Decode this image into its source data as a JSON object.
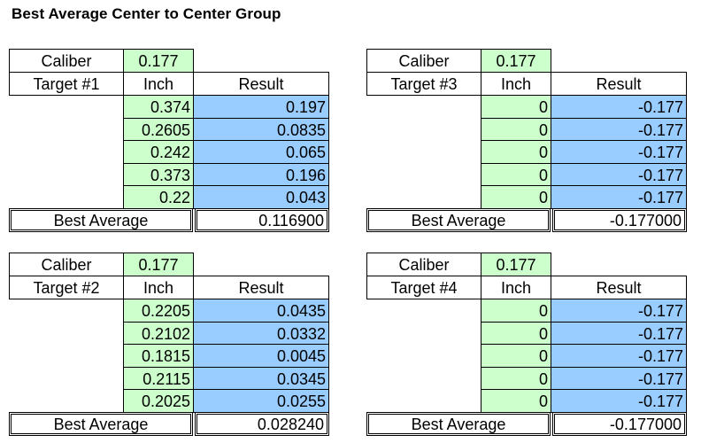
{
  "title": "Best Average Center to Center Group",
  "labels": {
    "caliber": "Caliber",
    "inch": "Inch",
    "result": "Result",
    "best_average": "Best Average"
  },
  "colors": {
    "input_fill": "#ccffcc",
    "result_fill": "#99ccff",
    "border": "#000000"
  },
  "targets": [
    {
      "name": "Target #1",
      "caliber": "0.177",
      "rows": [
        {
          "inch": "0.374",
          "result": "0.197"
        },
        {
          "inch": "0.2605",
          "result": "0.0835"
        },
        {
          "inch": "0.242",
          "result": "0.065"
        },
        {
          "inch": "0.373",
          "result": "0.196"
        },
        {
          "inch": "0.22",
          "result": "0.043"
        }
      ],
      "best_average": "0.116900"
    },
    {
      "name": "Target #3",
      "caliber": "0.177",
      "rows": [
        {
          "inch": "0",
          "result": "-0.177"
        },
        {
          "inch": "0",
          "result": "-0.177"
        },
        {
          "inch": "0",
          "result": "-0.177"
        },
        {
          "inch": "0",
          "result": "-0.177"
        },
        {
          "inch": "0",
          "result": "-0.177"
        }
      ],
      "best_average": "-0.177000"
    },
    {
      "name": "Target #2",
      "caliber": "0.177",
      "rows": [
        {
          "inch": "0.2205",
          "result": "0.0435"
        },
        {
          "inch": "0.2102",
          "result": "0.0332"
        },
        {
          "inch": "0.1815",
          "result": "0.0045"
        },
        {
          "inch": "0.2115",
          "result": "0.0345"
        },
        {
          "inch": "0.2025",
          "result": "0.0255"
        }
      ],
      "best_average": "0.028240"
    },
    {
      "name": "Target #4",
      "caliber": "0.177",
      "rows": [
        {
          "inch": "0",
          "result": "-0.177"
        },
        {
          "inch": "0",
          "result": "-0.177"
        },
        {
          "inch": "0",
          "result": "-0.177"
        },
        {
          "inch": "0",
          "result": "-0.177"
        },
        {
          "inch": "0",
          "result": "-0.177"
        }
      ],
      "best_average": "-0.177000"
    }
  ]
}
